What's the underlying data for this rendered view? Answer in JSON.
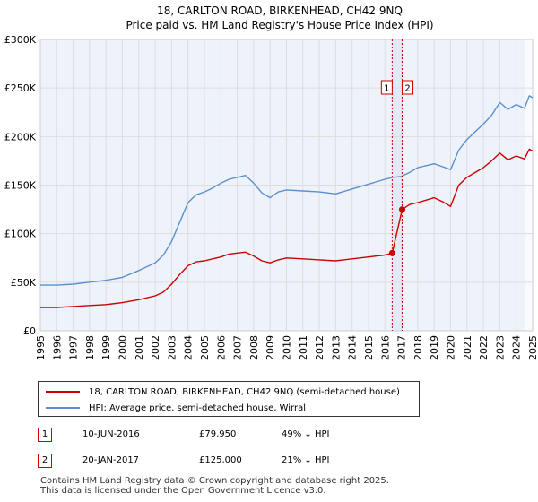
{
  "chart_data": {
    "type": "line",
    "title": "18, CARLTON ROAD, BIRKENHEAD, CH42 9NQ",
    "subtitle": "Price paid vs. HM Land Registry's House Price Index (HPI)",
    "xlabel": "",
    "ylabel": "",
    "xlim": [
      1995,
      2025
    ],
    "ylim": [
      0,
      300000
    ],
    "y_ticks": [
      0,
      50000,
      100000,
      150000,
      200000,
      250000,
      300000
    ],
    "y_tick_labels": [
      "£0",
      "£50K",
      "£100K",
      "£150K",
      "£200K",
      "£250K",
      "£300K"
    ],
    "x_ticks": [
      1995,
      1996,
      1997,
      1998,
      1999,
      2000,
      2001,
      2002,
      2003,
      2004,
      2005,
      2006,
      2007,
      2008,
      2009,
      2010,
      2011,
      2012,
      2013,
      2014,
      2015,
      2016,
      2017,
      2018,
      2019,
      2020,
      2021,
      2022,
      2023,
      2024,
      2025
    ],
    "x_tick_labels": [
      "1995",
      "1996",
      "1997",
      "1998",
      "1999",
      "2000",
      "2001",
      "2002",
      "2003",
      "2004",
      "2005",
      "2006",
      "2007",
      "2008",
      "2009",
      "2010",
      "2011",
      "2012",
      "2013",
      "2014",
      "2015",
      "2016",
      "2017",
      "2018",
      "2019",
      "2020",
      "2021",
      "2022",
      "2023",
      "2024",
      "2025"
    ],
    "grid": true,
    "series": [
      {
        "name": "18, CARLTON ROAD, BIRKENHEAD, CH42 9NQ (semi-detached house)",
        "color": "#cc0000",
        "x": [
          1995,
          1996,
          1997,
          1998,
          1999,
          2000,
          2001,
          2002,
          2002.5,
          2003,
          2003.5,
          2004,
          2004.5,
          2005,
          2005.5,
          2006,
          2006.5,
          2007,
          2007.5,
          2008,
          2008.5,
          2009,
          2009.5,
          2010,
          2011,
          2012,
          2013,
          2014,
          2015,
          2016,
          2016.44,
          2017.05,
          2017.5,
          2018,
          2019,
          2019.5,
          2020,
          2020.5,
          2021,
          2021.5,
          2022,
          2022.5,
          2023,
          2023.5,
          2024,
          2024.5,
          2024.8,
          2025
        ],
        "values": [
          24000,
          24000,
          25000,
          26000,
          27000,
          29000,
          32000,
          36000,
          40000,
          48000,
          58000,
          67000,
          71000,
          72000,
          74000,
          76000,
          79000,
          80000,
          81000,
          77000,
          72000,
          70000,
          73000,
          75000,
          74000,
          73000,
          72000,
          74000,
          76000,
          78000,
          79950,
          125000,
          130000,
          132000,
          137000,
          133000,
          128000,
          150000,
          158000,
          163000,
          168000,
          175000,
          183000,
          176000,
          180000,
          177000,
          187000,
          185000
        ]
      },
      {
        "name": "HPI: Average price, semi-detached house, Wirral",
        "color": "#5b8fd0",
        "x": [
          1995,
          1996,
          1997,
          1998,
          1999,
          2000,
          2001,
          2002,
          2002.5,
          2003,
          2003.5,
          2004,
          2004.5,
          2005,
          2005.5,
          2006,
          2006.5,
          2007,
          2007.5,
          2008,
          2008.5,
          2009,
          2009.5,
          2010,
          2011,
          2012,
          2013,
          2014,
          2015,
          2016,
          2016.5,
          2017,
          2017.5,
          2018,
          2019,
          2019.5,
          2020,
          2020.5,
          2021,
          2021.5,
          2022,
          2022.5,
          2023,
          2023.5,
          2024,
          2024.5,
          2024.8,
          2025
        ],
        "values": [
          47000,
          47000,
          48000,
          50000,
          52000,
          55000,
          62000,
          70000,
          78000,
          92000,
          112000,
          132000,
          140000,
          143000,
          147000,
          152000,
          156000,
          158000,
          160000,
          152000,
          142000,
          137000,
          143000,
          145000,
          144000,
          143000,
          141000,
          146000,
          151000,
          156000,
          158000,
          159000,
          163000,
          168000,
          172000,
          169000,
          166000,
          186000,
          197000,
          205000,
          213000,
          222000,
          235000,
          228000,
          233000,
          229000,
          242000,
          240000
        ]
      }
    ],
    "annotations": [
      {
        "label": "1",
        "x": 2016.44,
        "y": 79950
      },
      {
        "label": "2",
        "x": 2017.05,
        "y": 125000
      }
    ]
  },
  "legend": {
    "items": [
      {
        "label": "18, CARLTON ROAD, BIRKENHEAD, CH42 9NQ (semi-detached house)",
        "color": "#cc0000"
      },
      {
        "label": "HPI: Average price, semi-detached house, Wirral",
        "color": "#5b8fd0"
      }
    ]
  },
  "transactions": [
    {
      "num": "1",
      "date": "10-JUN-2016",
      "price": "£79,950",
      "hpi": "49% ↓ HPI"
    },
    {
      "num": "2",
      "date": "20-JAN-2017",
      "price": "£125,000",
      "hpi": "21% ↓ HPI"
    }
  ],
  "footer": {
    "line1": "Contains HM Land Registry data © Crown copyright and database right 2025.",
    "line2": "This data is licensed under the Open Government Licence v3.0."
  },
  "colors": {
    "price_line": "#cc0000",
    "hpi_line": "#5b8fd0",
    "grid": "#dddddd",
    "plot_bg": "#eef2fb",
    "shade": "#e3e9f7"
  }
}
